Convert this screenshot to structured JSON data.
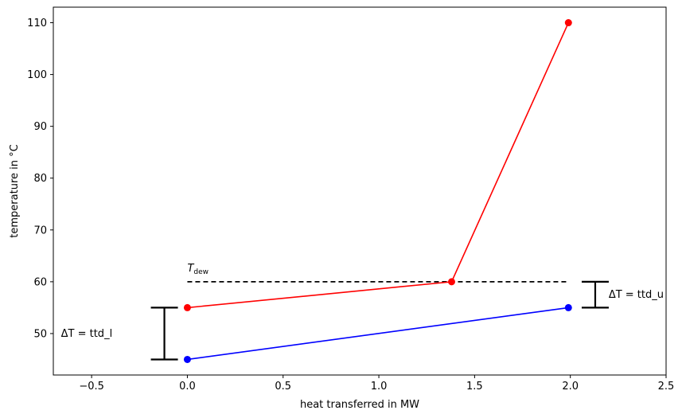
{
  "chart_data": {
    "type": "line",
    "xlabel": "heat transferred in MW",
    "ylabel": "temperature in °C",
    "xlim": [
      -0.7,
      2.5
    ],
    "ylim": [
      42,
      113
    ],
    "x_ticks": [
      -0.5,
      0.0,
      0.5,
      1.0,
      1.5,
      2.0,
      2.5
    ],
    "x_tick_labels": [
      "−0.5",
      "0.0",
      "0.5",
      "1.0",
      "1.5",
      "2.0",
      "2.5"
    ],
    "y_ticks": [
      50,
      60,
      70,
      80,
      90,
      100,
      110
    ],
    "y_tick_labels": [
      "50",
      "60",
      "70",
      "80",
      "90",
      "100",
      "110"
    ],
    "grid": false,
    "series": [
      {
        "color": "#ff0000",
        "x": [
          0.0,
          1.38,
          1.99
        ],
        "y": [
          55,
          60,
          110
        ]
      },
      {
        "color": "#0000ff",
        "x": [
          0.0,
          1.99
        ],
        "y": [
          45,
          55
        ]
      }
    ],
    "reference_line": {
      "x": [
        0.0,
        1.99
      ],
      "y": 60,
      "color": "#000000",
      "style": "dashed"
    },
    "annotations": {
      "dew": {
        "main": "T",
        "sub": "dew",
        "x": 0.0,
        "y": 62
      },
      "ttd_l": {
        "text": "ΔT = ttd_l",
        "x": -0.66,
        "y": 50,
        "bar": {
          "x": -0.12,
          "y_low": 45,
          "y_high": 55
        }
      },
      "ttd_u": {
        "text": "ΔT = ttd_u",
        "x": 2.2,
        "y": 57.5,
        "bar": {
          "x": 2.13,
          "y_low": 55,
          "y_high": 60
        }
      }
    }
  }
}
